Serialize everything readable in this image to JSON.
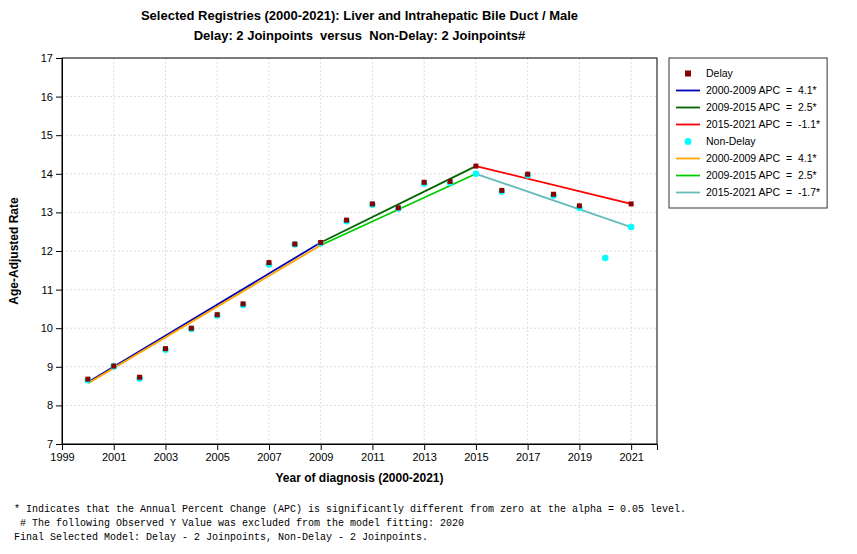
{
  "chart_data": {
    "type": "scatter",
    "title": "Selected Registries (2000-2021): Liver and Intrahepatic Bile Duct / Male",
    "subtitle": "Delay: 2 Joinpoints  versus  Non-Delay: 2 Joinpoints#",
    "x_label": "Year of diagnosis (2000-2021)",
    "y_label": "Age-Adjusted Rate",
    "xlim": [
      1999,
      2022
    ],
    "xticks": [
      1999,
      2001,
      2003,
      2005,
      2007,
      2009,
      2011,
      2013,
      2015,
      2017,
      2019,
      2021
    ],
    "ylim": [
      7,
      17
    ],
    "yticks": [
      7,
      8,
      9,
      10,
      11,
      12,
      13,
      14,
      15,
      16,
      17
    ],
    "grid": true,
    "legend": "right",
    "series": [
      {
        "name": "Delay",
        "type": "scatter",
        "marker": "square",
        "color": "#8B0000",
        "x": [
          2000,
          2001,
          2002,
          2003,
          2004,
          2005,
          2006,
          2007,
          2008,
          2009,
          2010,
          2011,
          2012,
          2013,
          2014,
          2015,
          2016,
          2017,
          2018,
          2019,
          2021
        ],
        "values": [
          8.68,
          9.02,
          8.73,
          9.47,
          10.0,
          10.35,
          10.63,
          11.7,
          12.18,
          12.22,
          12.8,
          13.22,
          13.12,
          13.78,
          13.8,
          14.2,
          13.57,
          13.99,
          13.47,
          13.17,
          13.22
        ]
      },
      {
        "name": "2000-2009 APC  =  4.1*",
        "type": "line",
        "color": "#0000BB",
        "x": [
          2000,
          2009
        ],
        "values": [
          8.6,
          12.22
        ]
      },
      {
        "name": "2009-2015 APC  =  2.5*",
        "type": "line",
        "color": "#006400",
        "x": [
          2009,
          2015
        ],
        "values": [
          12.22,
          14.2
        ]
      },
      {
        "name": "2015-2021 APC  =  -1.1*",
        "type": "line",
        "color": "#FF0000",
        "x": [
          2015,
          2021
        ],
        "values": [
          14.2,
          13.22
        ]
      },
      {
        "name": "Non-Delay",
        "type": "scatter",
        "marker": "circle",
        "color": "#00FFFF",
        "x": [
          2000,
          2001,
          2002,
          2003,
          2004,
          2005,
          2006,
          2007,
          2008,
          2009,
          2010,
          2011,
          2012,
          2013,
          2014,
          2015,
          2016,
          2017,
          2018,
          2019,
          2020,
          2021
        ],
        "values": [
          8.65,
          9.01,
          8.7,
          9.44,
          9.98,
          10.33,
          10.6,
          11.65,
          12.17,
          12.2,
          12.77,
          13.2,
          13.1,
          13.75,
          13.77,
          14.0,
          13.54,
          13.96,
          13.44,
          13.12,
          11.82,
          12.62
        ]
      },
      {
        "name": "2000-2009 APC  =  4.1*",
        "type": "line",
        "color": "#FFA500",
        "x": [
          2000,
          2009
        ],
        "values": [
          8.57,
          12.15
        ]
      },
      {
        "name": "2009-2015 APC  =  2.5*",
        "type": "line",
        "color": "#00CC00",
        "x": [
          2009,
          2015
        ],
        "values": [
          12.15,
          14.0
        ]
      },
      {
        "name": "2015-2021 APC  =  -1.7*",
        "type": "line",
        "color": "#66BBBB",
        "x": [
          2015,
          2021
        ],
        "values": [
          14.0,
          12.62
        ]
      }
    ],
    "annotations": [
      "* Indicates that the Annual Percent Change (APC) is significantly different from zero at the alpha = 0.05 level.",
      " # The following Observed Y Value was excluded from the model fitting: 2020",
      "Final Selected Model: Delay - 2 Joinpoints, Non-Delay - 2 Joinpoints."
    ]
  }
}
